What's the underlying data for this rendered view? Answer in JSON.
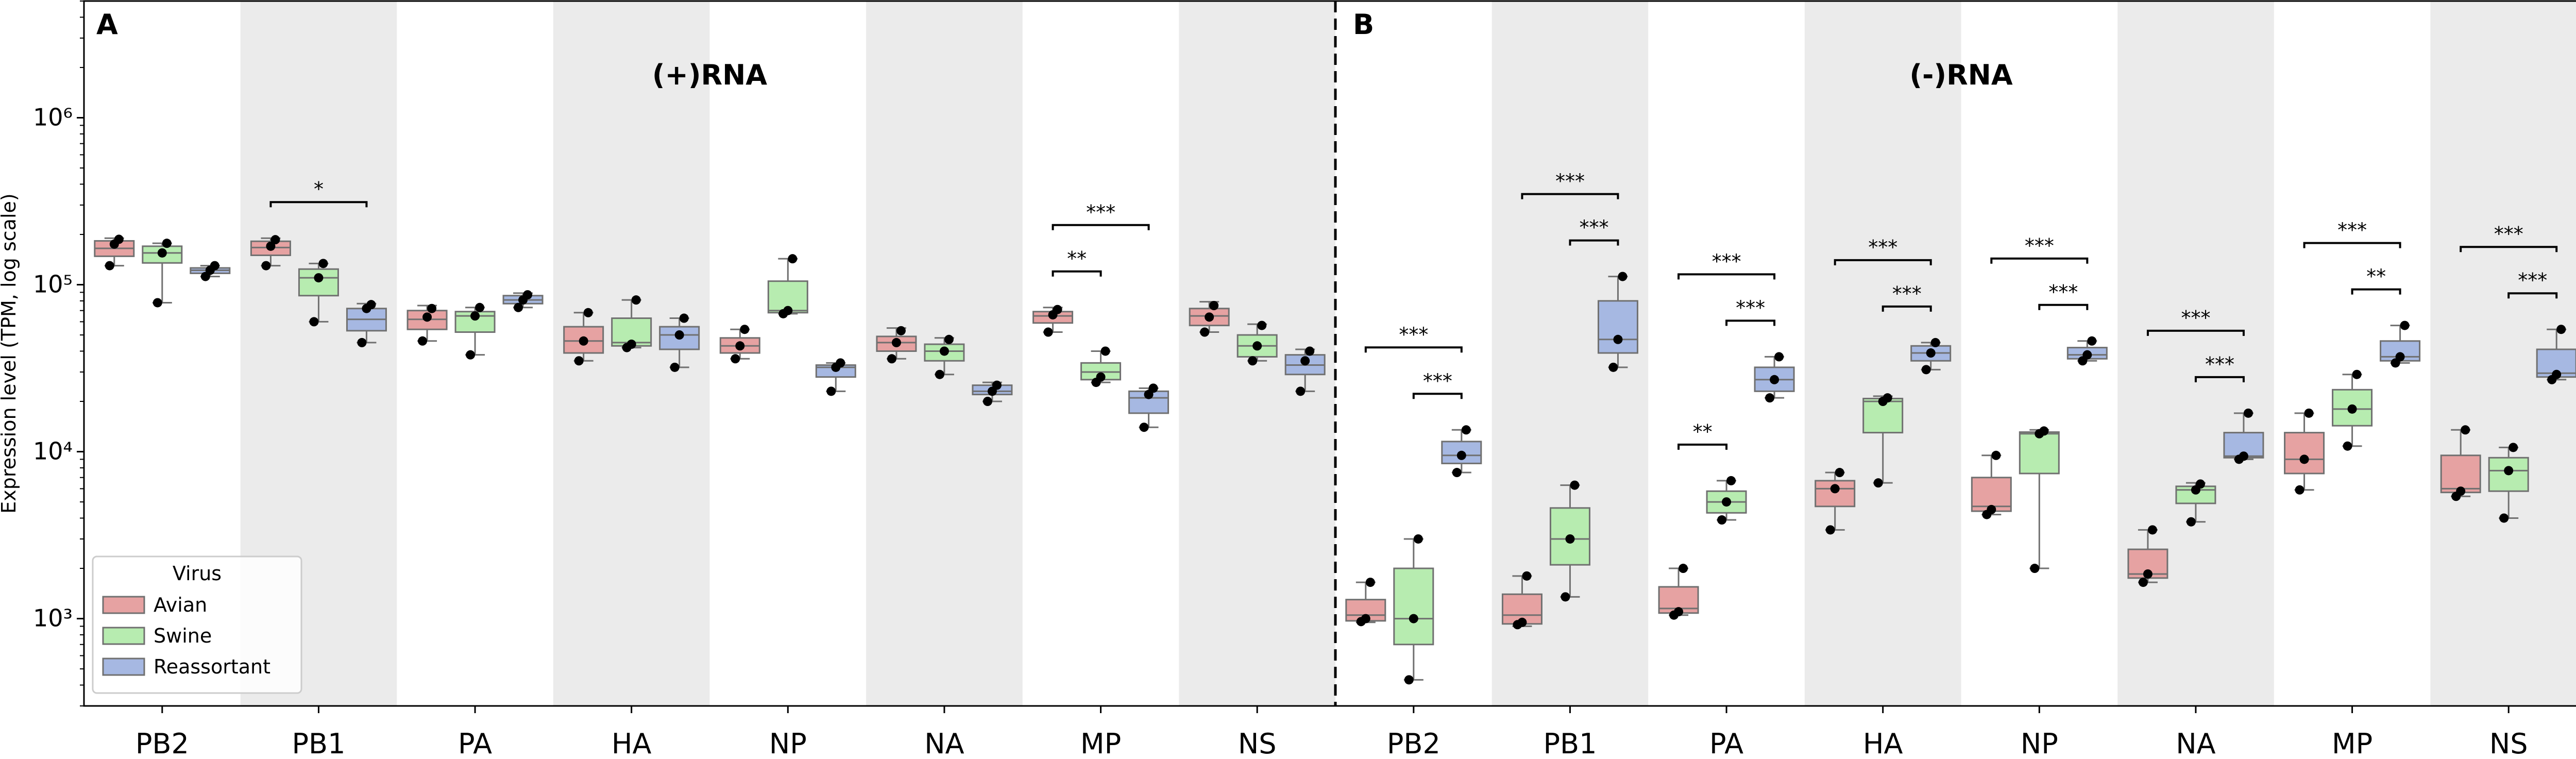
{
  "chart_data": {
    "type": "box",
    "ylabel": "Expression level (TPM, log scale)",
    "yscale": "log",
    "ylim": [
      300,
      5000000
    ],
    "y_ticks": [
      {
        "value": 1000,
        "label": "10³"
      },
      {
        "value": 10000,
        "label": "10⁴"
      },
      {
        "value": 100000,
        "label": "10⁵"
      },
      {
        "value": 1000000,
        "label": "10⁶"
      }
    ],
    "legend": {
      "title": "Virus",
      "position": "lower-left",
      "entries": [
        {
          "name": "Avian",
          "color": "#e6a2a2"
        },
        {
          "name": "Swine",
          "color": "#b7ecb0"
        },
        {
          "name": "Reassortant",
          "color": "#a6b8e2"
        }
      ]
    },
    "colors": {
      "box_edge": "#707070",
      "panel_shade": "#ebebeb",
      "point": "#000000",
      "divider": "#000000"
    },
    "panels": [
      {
        "letter": "A",
        "title": "(+)RNA",
        "categories": [
          {
            "name": "PB2",
            "boxes": [
              {
                "min": 130000,
                "q1": 148000,
                "median": 165000,
                "q3": 183000,
                "max": 190000,
                "points": [
                  130000,
                  175000,
                  187000
                ]
              },
              {
                "min": 78000,
                "q1": 135000,
                "median": 155000,
                "q3": 170000,
                "max": 177000,
                "points": [
                  78000,
                  155000,
                  177000
                ]
              },
              {
                "min": 112000,
                "q1": 117000,
                "median": 122000,
                "q3": 126000,
                "max": 130000,
                "points": [
                  112000,
                  122000,
                  130000
                ]
              }
            ],
            "sig": []
          },
          {
            "name": "PB1",
            "boxes": [
              {
                "min": 130000,
                "q1": 150000,
                "median": 167000,
                "q3": 182000,
                "max": 190000,
                "points": [
                  130000,
                  170000,
                  186000
                ]
              },
              {
                "min": 60000,
                "q1": 86000,
                "median": 110000,
                "q3": 124000,
                "max": 134000,
                "points": [
                  60000,
                  110000,
                  134000
                ]
              },
              {
                "min": 45000,
                "q1": 53000,
                "median": 62000,
                "q3": 72000,
                "max": 77000,
                "points": [
                  45000,
                  72000,
                  76000
                ]
              }
            ],
            "sig": [
              {
                "from": 0,
                "to": 2,
                "label": "*"
              }
            ]
          },
          {
            "name": "PA",
            "boxes": [
              {
                "min": 46000,
                "q1": 54000,
                "median": 62000,
                "q3": 70000,
                "max": 75000,
                "points": [
                  46000,
                  64000,
                  72000
                ]
              },
              {
                "min": 38000,
                "q1": 52000,
                "median": 65000,
                "q3": 69000,
                "max": 73000,
                "points": [
                  38000,
                  65000,
                  73000
                ]
              },
              {
                "min": 73000,
                "q1": 77000,
                "median": 81000,
                "q3": 86000,
                "max": 89000,
                "points": [
                  73000,
                  81000,
                  87000
                ]
              }
            ],
            "sig": []
          },
          {
            "name": "HA",
            "boxes": [
              {
                "min": 35000,
                "q1": 39000,
                "median": 46000,
                "q3": 56000,
                "max": 68000,
                "points": [
                  35000,
                  46000,
                  68000
                ]
              },
              {
                "min": 42000,
                "q1": 43000,
                "median": 45000,
                "q3": 63000,
                "max": 81000,
                "points": [
                  42000,
                  44000,
                  81000
                ]
              },
              {
                "min": 32000,
                "q1": 41000,
                "median": 50000,
                "q3": 56000,
                "max": 63000,
                "points": [
                  32000,
                  50000,
                  63000
                ]
              }
            ],
            "sig": []
          },
          {
            "name": "NP",
            "boxes": [
              {
                "min": 36000,
                "q1": 39000,
                "median": 43000,
                "q3": 48000,
                "max": 54000,
                "points": [
                  36000,
                  43000,
                  54000
                ]
              },
              {
                "min": 67000,
                "q1": 68000,
                "median": 70000,
                "q3": 105000,
                "max": 143000,
                "points": [
                  67000,
                  70000,
                  143000
                ]
              },
              {
                "min": 23000,
                "q1": 28000,
                "median": 32000,
                "q3": 33000,
                "max": 34000,
                "points": [
                  23000,
                  32000,
                  34000
                ]
              }
            ],
            "sig": []
          },
          {
            "name": "NA",
            "boxes": [
              {
                "min": 36000,
                "q1": 40000,
                "median": 45000,
                "q3": 49000,
                "max": 55000,
                "points": [
                  36000,
                  45000,
                  53000
                ]
              },
              {
                "min": 29000,
                "q1": 35000,
                "median": 40000,
                "q3": 44000,
                "max": 48000,
                "points": [
                  29000,
                  40000,
                  47000
                ]
              },
              {
                "min": 20000,
                "q1": 22000,
                "median": 23000,
                "q3": 25000,
                "max": 26000,
                "points": [
                  20000,
                  23000,
                  25000
                ]
              }
            ],
            "sig": []
          },
          {
            "name": "MP",
            "boxes": [
              {
                "min": 52000,
                "q1": 59000,
                "median": 65000,
                "q3": 69000,
                "max": 73000,
                "points": [
                  52000,
                  66000,
                  71000
                ]
              },
              {
                "min": 26000,
                "q1": 27000,
                "median": 30000,
                "q3": 34000,
                "max": 40000,
                "points": [
                  26000,
                  28000,
                  40000
                ]
              },
              {
                "min": 14000,
                "q1": 17000,
                "median": 21000,
                "q3": 23000,
                "max": 24000,
                "points": [
                  14000,
                  22000,
                  24000
                ]
              }
            ],
            "sig": [
              {
                "from": 0,
                "to": 1,
                "label": "**"
              },
              {
                "from": 0,
                "to": 2,
                "label": "***"
              }
            ]
          },
          {
            "name": "NS",
            "boxes": [
              {
                "min": 52000,
                "q1": 57000,
                "median": 65000,
                "q3": 72000,
                "max": 79000,
                "points": [
                  52000,
                  64000,
                  75000
                ]
              },
              {
                "min": 35000,
                "q1": 37000,
                "median": 43000,
                "q3": 50000,
                "max": 58000,
                "points": [
                  35000,
                  43000,
                  57000
                ]
              },
              {
                "min": 23000,
                "q1": 29000,
                "median": 33000,
                "q3": 38000,
                "max": 41000,
                "points": [
                  23000,
                  35000,
                  40000
                ]
              }
            ],
            "sig": []
          }
        ]
      },
      {
        "letter": "B",
        "title": "(-)RNA",
        "categories": [
          {
            "name": "PB2",
            "boxes": [
              {
                "min": 950,
                "q1": 970,
                "median": 1050,
                "q3": 1300,
                "max": 1650,
                "points": [
                  960,
                  1000,
                  1650
                ]
              },
              {
                "min": 430,
                "q1": 700,
                "median": 1000,
                "q3": 2000,
                "max": 3000,
                "points": [
                  430,
                  1000,
                  3000
                ]
              },
              {
                "min": 7500,
                "q1": 8500,
                "median": 9500,
                "q3": 11500,
                "max": 13500,
                "points": [
                  7500,
                  9500,
                  13500
                ]
              }
            ],
            "sig": [
              {
                "from": 0,
                "to": 2,
                "label": "***"
              },
              {
                "from": 1,
                "to": 2,
                "label": "***"
              }
            ]
          },
          {
            "name": "PB1",
            "boxes": [
              {
                "min": 900,
                "q1": 930,
                "median": 1050,
                "q3": 1400,
                "max": 1800,
                "points": [
                  920,
                  950,
                  1800
                ]
              },
              {
                "min": 1350,
                "q1": 2100,
                "median": 3000,
                "q3": 4600,
                "max": 6300,
                "points": [
                  1350,
                  3000,
                  6300
                ]
              },
              {
                "min": 32000,
                "q1": 39000,
                "median": 47000,
                "q3": 80000,
                "max": 112000,
                "points": [
                  32000,
                  47000,
                  112000
                ]
              }
            ],
            "sig": [
              {
                "from": 0,
                "to": 2,
                "label": "***"
              },
              {
                "from": 1,
                "to": 2,
                "label": "***"
              }
            ]
          },
          {
            "name": "PA",
            "boxes": [
              {
                "min": 1050,
                "q1": 1080,
                "median": 1150,
                "q3": 1550,
                "max": 2000,
                "points": [
                  1050,
                  1100,
                  2000
                ]
              },
              {
                "min": 3900,
                "q1": 4300,
                "median": 5000,
                "q3": 5800,
                "max": 6700,
                "points": [
                  3900,
                  5000,
                  6700
                ]
              },
              {
                "min": 21000,
                "q1": 23000,
                "median": 27000,
                "q3": 32000,
                "max": 37000,
                "points": [
                  21000,
                  27000,
                  37000
                ]
              }
            ],
            "sig": [
              {
                "from": 0,
                "to": 1,
                "label": "**"
              },
              {
                "from": 0,
                "to": 2,
                "label": "***"
              },
              {
                "from": 1,
                "to": 2,
                "label": "***"
              }
            ]
          },
          {
            "name": "HA",
            "boxes": [
              {
                "min": 3400,
                "q1": 4700,
                "median": 6000,
                "q3": 6700,
                "max": 7500,
                "points": [
                  3400,
                  6000,
                  7500
                ]
              },
              {
                "min": 6500,
                "q1": 13000,
                "median": 20000,
                "q3": 20800,
                "max": 21500,
                "points": [
                  6500,
                  20000,
                  21000
                ]
              },
              {
                "min": 31000,
                "q1": 35000,
                "median": 39000,
                "q3": 43000,
                "max": 45000,
                "points": [
                  31000,
                  39000,
                  45000
                ]
              }
            ],
            "sig": [
              {
                "from": 0,
                "to": 2,
                "label": "***"
              },
              {
                "from": 1,
                "to": 2,
                "label": "***"
              }
            ]
          },
          {
            "name": "NP",
            "boxes": [
              {
                "min": 4200,
                "q1": 4400,
                "median": 4700,
                "q3": 7000,
                "max": 9500,
                "points": [
                  4200,
                  4500,
                  9500
                ]
              },
              {
                "min": 2000,
                "q1": 7400,
                "median": 12800,
                "q3": 13100,
                "max": 13500,
                "points": [
                  2000,
                  12800,
                  13300
                ]
              },
              {
                "min": 35000,
                "q1": 36000,
                "median": 38000,
                "q3": 42000,
                "max": 46000,
                "points": [
                  35000,
                  38000,
                  46000
                ]
              }
            ],
            "sig": [
              {
                "from": 0,
                "to": 2,
                "label": "***"
              },
              {
                "from": 1,
                "to": 2,
                "label": "***"
              }
            ]
          },
          {
            "name": "NA",
            "boxes": [
              {
                "min": 1650,
                "q1": 1750,
                "median": 1850,
                "q3": 2600,
                "max": 3400,
                "points": [
                  1650,
                  1850,
                  3400
                ]
              },
              {
                "min": 3800,
                "q1": 4900,
                "median": 5900,
                "q3": 6200,
                "max": 6500,
                "points": [
                  3800,
                  5900,
                  6400
                ]
              },
              {
                "min": 9000,
                "q1": 9200,
                "median": 9400,
                "q3": 13000,
                "max": 17000,
                "points": [
                  9000,
                  9400,
                  17000
                ]
              }
            ],
            "sig": [
              {
                "from": 0,
                "to": 2,
                "label": "***"
              },
              {
                "from": 1,
                "to": 2,
                "label": "***"
              }
            ]
          },
          {
            "name": "MP",
            "boxes": [
              {
                "min": 5900,
                "q1": 7400,
                "median": 9000,
                "q3": 13000,
                "max": 17000,
                "points": [
                  5900,
                  9000,
                  17000
                ]
              },
              {
                "min": 10800,
                "q1": 14300,
                "median": 18000,
                "q3": 23500,
                "max": 29000,
                "points": [
                  10800,
                  18000,
                  29000
                ]
              },
              {
                "min": 34000,
                "q1": 35000,
                "median": 37000,
                "q3": 46000,
                "max": 57000,
                "points": [
                  34000,
                  37000,
                  57000
                ]
              }
            ],
            "sig": [
              {
                "from": 0,
                "to": 2,
                "label": "***"
              },
              {
                "from": 1,
                "to": 2,
                "label": "**"
              }
            ]
          },
          {
            "name": "NS",
            "boxes": [
              {
                "min": 5400,
                "q1": 5700,
                "median": 6000,
                "q3": 9500,
                "max": 13500,
                "points": [
                  5400,
                  5800,
                  13500
                ]
              },
              {
                "min": 4000,
                "q1": 5800,
                "median": 7700,
                "q3": 9200,
                "max": 10600,
                "points": [
                  4000,
                  7700,
                  10600
                ]
              },
              {
                "min": 27000,
                "q1": 28000,
                "median": 29500,
                "q3": 41000,
                "max": 54000,
                "points": [
                  27000,
                  29000,
                  54000
                ]
              }
            ],
            "sig": [
              {
                "from": 0,
                "to": 2,
                "label": "***"
              },
              {
                "from": 1,
                "to": 2,
                "label": "***"
              }
            ]
          }
        ]
      }
    ]
  }
}
